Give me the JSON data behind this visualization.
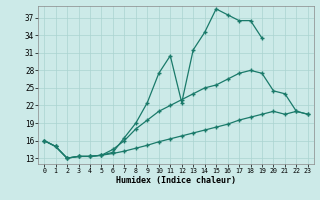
{
  "xlabel": "Humidex (Indice chaleur)",
  "xlim": [
    -0.5,
    23.5
  ],
  "ylim": [
    12,
    39
  ],
  "xticks": [
    0,
    1,
    2,
    3,
    4,
    5,
    6,
    7,
    8,
    9,
    10,
    11,
    12,
    13,
    14,
    15,
    16,
    17,
    18,
    19,
    20,
    21,
    22,
    23
  ],
  "yticks": [
    13,
    16,
    19,
    22,
    25,
    28,
    31,
    34,
    37
  ],
  "bg_color": "#cceae8",
  "grid_color": "#aad4d0",
  "line_color": "#1a7a6a",
  "line1_x": [
    0,
    1,
    2,
    3,
    4,
    5,
    6,
    7,
    8,
    9,
    10,
    11,
    12,
    13,
    14,
    15,
    16,
    17,
    18,
    19
  ],
  "line1_y": [
    16.0,
    15.0,
    13.0,
    13.3,
    13.3,
    13.5,
    14.0,
    16.5,
    19.0,
    22.5,
    27.5,
    30.5,
    22.5,
    31.5,
    34.5,
    38.5,
    37.5,
    36.5,
    36.5,
    33.5
  ],
  "line2_x": [
    0,
    1,
    2,
    3,
    4,
    5,
    6,
    7,
    8,
    9,
    10,
    11,
    12,
    13,
    14,
    15,
    16,
    17,
    18,
    19,
    20,
    21,
    22,
    23
  ],
  "line2_y": [
    16.0,
    15.0,
    13.0,
    13.3,
    13.3,
    13.5,
    14.5,
    16.0,
    18.0,
    19.5,
    21.0,
    22.0,
    23.0,
    24.0,
    25.0,
    25.5,
    26.5,
    27.5,
    28.0,
    27.5,
    24.5,
    24.0,
    21.0,
    20.5
  ],
  "line3_x": [
    0,
    1,
    2,
    3,
    4,
    5,
    6,
    7,
    8,
    9,
    10,
    11,
    12,
    13,
    14,
    15,
    16,
    17,
    18,
    19,
    20,
    21,
    22,
    23
  ],
  "line3_y": [
    16.0,
    15.0,
    13.0,
    13.3,
    13.3,
    13.5,
    13.8,
    14.2,
    14.7,
    15.2,
    15.8,
    16.3,
    16.8,
    17.3,
    17.8,
    18.3,
    18.8,
    19.5,
    20.0,
    20.5,
    21.0,
    20.5,
    21.0,
    20.5
  ]
}
